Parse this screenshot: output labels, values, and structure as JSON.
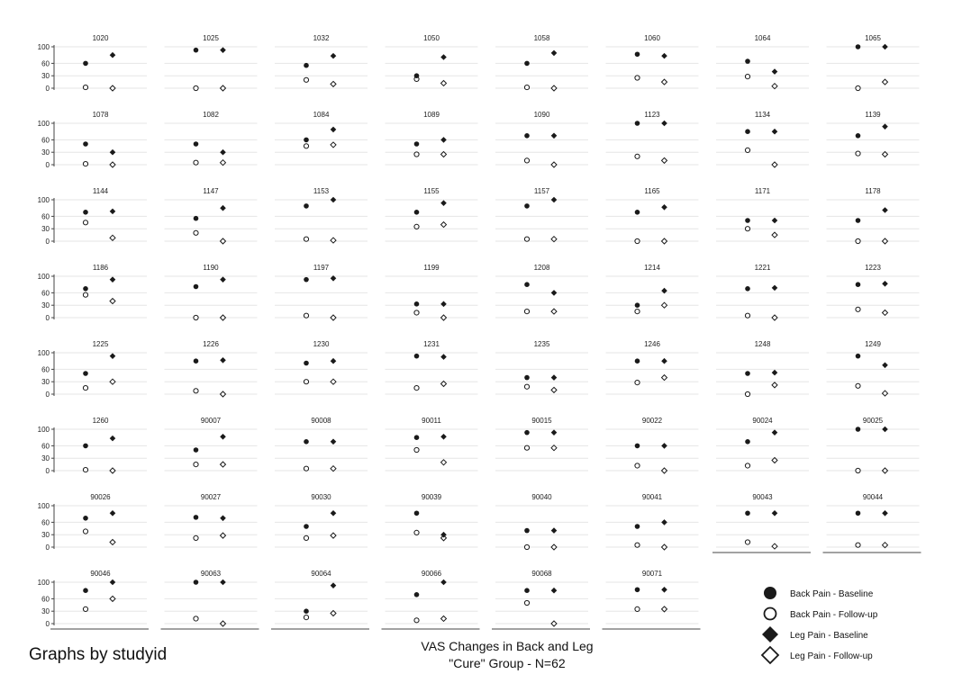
{
  "chart_data": {
    "type": "scatter",
    "title": "VAS Changes in Back and Leg",
    "subtitle": "\"Cure\" Group - N=62",
    "note": "Graphs by studyid",
    "ylim": [
      0,
      100
    ],
    "yticks": [
      "100",
      "60",
      "30",
      "0"
    ],
    "series_names": [
      "Back Pain - Baseline",
      "Back Pain - Follow-up",
      "Leg Pain - Baseline",
      "Leg Pain - Follow-up"
    ],
    "legend_position": "bottom-right",
    "grid": true,
    "panels": [
      {
        "id": "1020",
        "back_baseline": 60,
        "back_followup": 2,
        "leg_baseline": 80,
        "leg_followup": 0
      },
      {
        "id": "1025",
        "back_baseline": 92,
        "back_followup": 0,
        "leg_baseline": 92,
        "leg_followup": 0
      },
      {
        "id": "1032",
        "back_baseline": 55,
        "back_followup": 20,
        "leg_baseline": 78,
        "leg_followup": 10
      },
      {
        "id": "1050",
        "back_baseline": 30,
        "back_followup": 22,
        "leg_baseline": 75,
        "leg_followup": 12
      },
      {
        "id": "1058",
        "back_baseline": 60,
        "back_followup": 2,
        "leg_baseline": 85,
        "leg_followup": 0
      },
      {
        "id": "1060",
        "back_baseline": 82,
        "back_followup": 25,
        "leg_baseline": 78,
        "leg_followup": 15
      },
      {
        "id": "1064",
        "back_baseline": 65,
        "back_followup": 28,
        "leg_baseline": 40,
        "leg_followup": 5
      },
      {
        "id": "1065",
        "back_baseline": 100,
        "back_followup": 0,
        "leg_baseline": 100,
        "leg_followup": 15
      },
      {
        "id": "1078",
        "back_baseline": 50,
        "back_followup": 2,
        "leg_baseline": 30,
        "leg_followup": 0
      },
      {
        "id": "1082",
        "back_baseline": 50,
        "back_followup": 5,
        "leg_baseline": 30,
        "leg_followup": 5
      },
      {
        "id": "1084",
        "back_baseline": 60,
        "back_followup": 45,
        "leg_baseline": 85,
        "leg_followup": 48
      },
      {
        "id": "1089",
        "back_baseline": 50,
        "back_followup": 25,
        "leg_baseline": 60,
        "leg_followup": 25
      },
      {
        "id": "1090",
        "back_baseline": 70,
        "back_followup": 10,
        "leg_baseline": 70,
        "leg_followup": 0
      },
      {
        "id": "1123",
        "back_baseline": 100,
        "back_followup": 20,
        "leg_baseline": 100,
        "leg_followup": 10
      },
      {
        "id": "1134",
        "back_baseline": 80,
        "back_followup": 35,
        "leg_baseline": 80,
        "leg_followup": 0
      },
      {
        "id": "1139",
        "back_baseline": 70,
        "back_followup": 27,
        "leg_baseline": 92,
        "leg_followup": 25
      },
      {
        "id": "1144",
        "back_baseline": 70,
        "back_followup": 45,
        "leg_baseline": 72,
        "leg_followup": 8
      },
      {
        "id": "1147",
        "back_baseline": 55,
        "back_followup": 20,
        "leg_baseline": 80,
        "leg_followup": 0
      },
      {
        "id": "1153",
        "back_baseline": 85,
        "back_followup": 5,
        "leg_baseline": 100,
        "leg_followup": 2
      },
      {
        "id": "1155",
        "back_baseline": 70,
        "back_followup": 35,
        "leg_baseline": 92,
        "leg_followup": 40
      },
      {
        "id": "1157",
        "back_baseline": 85,
        "back_followup": 5,
        "leg_baseline": 100,
        "leg_followup": 5
      },
      {
        "id": "1165",
        "back_baseline": 70,
        "back_followup": 0,
        "leg_baseline": 82,
        "leg_followup": 0
      },
      {
        "id": "1171",
        "back_baseline": 50,
        "back_followup": 30,
        "leg_baseline": 50,
        "leg_followup": 15
      },
      {
        "id": "1178",
        "back_baseline": 50,
        "back_followup": 0,
        "leg_baseline": 75,
        "leg_followup": 0
      },
      {
        "id": "1186",
        "back_baseline": 70,
        "back_followup": 55,
        "leg_baseline": 92,
        "leg_followup": 40
      },
      {
        "id": "1190",
        "back_baseline": 75,
        "back_followup": 0,
        "leg_baseline": 92,
        "leg_followup": 0
      },
      {
        "id": "1197",
        "back_baseline": 92,
        "back_followup": 5,
        "leg_baseline": 95,
        "leg_followup": 0
      },
      {
        "id": "1199",
        "back_baseline": 33,
        "back_followup": 12,
        "leg_baseline": 33,
        "leg_followup": 0
      },
      {
        "id": "1208",
        "back_baseline": 80,
        "back_followup": 15,
        "leg_baseline": 60,
        "leg_followup": 15
      },
      {
        "id": "1214",
        "back_baseline": 30,
        "back_followup": 15,
        "leg_baseline": 65,
        "leg_followup": 30
      },
      {
        "id": "1221",
        "back_baseline": 70,
        "back_followup": 5,
        "leg_baseline": 72,
        "leg_followup": 0
      },
      {
        "id": "1223",
        "back_baseline": 80,
        "back_followup": 20,
        "leg_baseline": 82,
        "leg_followup": 12
      },
      {
        "id": "1225",
        "back_baseline": 50,
        "back_followup": 15,
        "leg_baseline": 92,
        "leg_followup": 30
      },
      {
        "id": "1226",
        "back_baseline": 80,
        "back_followup": 8,
        "leg_baseline": 82,
        "leg_followup": 0
      },
      {
        "id": "1230",
        "back_baseline": 75,
        "back_followup": 30,
        "leg_baseline": 80,
        "leg_followup": 30
      },
      {
        "id": "1231",
        "back_baseline": 92,
        "back_followup": 15,
        "leg_baseline": 90,
        "leg_followup": 25
      },
      {
        "id": "1235",
        "back_baseline": 40,
        "back_followup": 18,
        "leg_baseline": 40,
        "leg_followup": 10
      },
      {
        "id": "1246",
        "back_baseline": 80,
        "back_followup": 28,
        "leg_baseline": 80,
        "leg_followup": 40
      },
      {
        "id": "1248",
        "back_baseline": 50,
        "back_followup": 0,
        "leg_baseline": 52,
        "leg_followup": 22
      },
      {
        "id": "1249",
        "back_baseline": 92,
        "back_followup": 20,
        "leg_baseline": 70,
        "leg_followup": 2
      },
      {
        "id": "1260",
        "back_baseline": 60,
        "back_followup": 2,
        "leg_baseline": 78,
        "leg_followup": 0
      },
      {
        "id": "90007",
        "back_baseline": 50,
        "back_followup": 15,
        "leg_baseline": 82,
        "leg_followup": 15
      },
      {
        "id": "90008",
        "back_baseline": 70,
        "back_followup": 5,
        "leg_baseline": 70,
        "leg_followup": 5
      },
      {
        "id": "90011",
        "back_baseline": 80,
        "back_followup": 50,
        "leg_baseline": 82,
        "leg_followup": 20
      },
      {
        "id": "90015",
        "back_baseline": 92,
        "back_followup": 55,
        "leg_baseline": 92,
        "leg_followup": 55
      },
      {
        "id": "90022",
        "back_baseline": 60,
        "back_followup": 12,
        "leg_baseline": 60,
        "leg_followup": 0
      },
      {
        "id": "90024",
        "back_baseline": 70,
        "back_followup": 12,
        "leg_baseline": 92,
        "leg_followup": 25
      },
      {
        "id": "90025",
        "back_baseline": 100,
        "back_followup": 0,
        "leg_baseline": 100,
        "leg_followup": 0
      },
      {
        "id": "90026",
        "back_baseline": 70,
        "back_followup": 38,
        "leg_baseline": 82,
        "leg_followup": 12
      },
      {
        "id": "90027",
        "back_baseline": 72,
        "back_followup": 22,
        "leg_baseline": 70,
        "leg_followup": 28
      },
      {
        "id": "90030",
        "back_baseline": 50,
        "back_followup": 22,
        "leg_baseline": 82,
        "leg_followup": 28
      },
      {
        "id": "90039",
        "back_baseline": 82,
        "back_followup": 35,
        "leg_baseline": 30,
        "leg_followup": 22
      },
      {
        "id": "90040",
        "back_baseline": 40,
        "back_followup": 0,
        "leg_baseline": 40,
        "leg_followup": 0
      },
      {
        "id": "90041",
        "back_baseline": 50,
        "back_followup": 5,
        "leg_baseline": 60,
        "leg_followup": 0
      },
      {
        "id": "90043",
        "back_baseline": 82,
        "back_followup": 12,
        "leg_baseline": 82,
        "leg_followup": 2
      },
      {
        "id": "90044",
        "back_baseline": 82,
        "back_followup": 5,
        "leg_baseline": 82,
        "leg_followup": 5
      },
      {
        "id": "90046",
        "back_baseline": 80,
        "back_followup": 35,
        "leg_baseline": 100,
        "leg_followup": 60
      },
      {
        "id": "90063",
        "back_baseline": 100,
        "back_followup": 12,
        "leg_baseline": 100,
        "leg_followup": 0
      },
      {
        "id": "90064",
        "back_baseline": 30,
        "back_followup": 15,
        "leg_baseline": 92,
        "leg_followup": 25
      },
      {
        "id": "90066",
        "back_baseline": 70,
        "back_followup": 8,
        "leg_baseline": 100,
        "leg_followup": 12
      },
      {
        "id": "90068",
        "back_baseline": 80,
        "back_followup": 50,
        "leg_baseline": 80,
        "leg_followup": 0
      },
      {
        "id": "90071",
        "back_baseline": 82,
        "back_followup": 35,
        "leg_baseline": 82,
        "leg_followup": 35
      }
    ],
    "colors": {
      "marker": "#1a1a1a",
      "grid": "#e6e6e6",
      "axis": "#444444",
      "background": "#ffffff"
    }
  }
}
